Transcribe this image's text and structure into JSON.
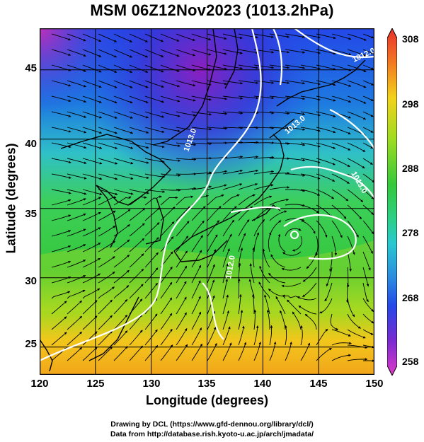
{
  "title": "MSM 06Z12Nov2023 (1013.2hPa)",
  "map": {
    "xlabel": "Longitude (degrees)",
    "ylabel": "Latitude  (degrees)",
    "lon_range": [
      120,
      150
    ],
    "lat_range": [
      23,
      48
    ],
    "lon_ticks": [
      "120",
      "125",
      "130",
      "135",
      "140",
      "145",
      "150"
    ],
    "lat_ticks": [
      "45",
      "40",
      "35",
      "30",
      "25"
    ],
    "grid": true
  },
  "contours": {
    "labels": [
      "1012.0",
      "1013.0",
      "1013.0",
      "1013.0",
      "1012.0"
    ]
  },
  "colorbar": {
    "ticks": [
      "308",
      "298",
      "288",
      "278",
      "268",
      "258"
    ],
    "range": [
      258,
      308
    ]
  },
  "credits": {
    "line1": "Drawing by DCL (https://www.gfd-dennou.org/library/dcl/)",
    "line2": "Data from http://database.rish.kyoto-u.ac.jp/arch/jmadata/"
  }
}
